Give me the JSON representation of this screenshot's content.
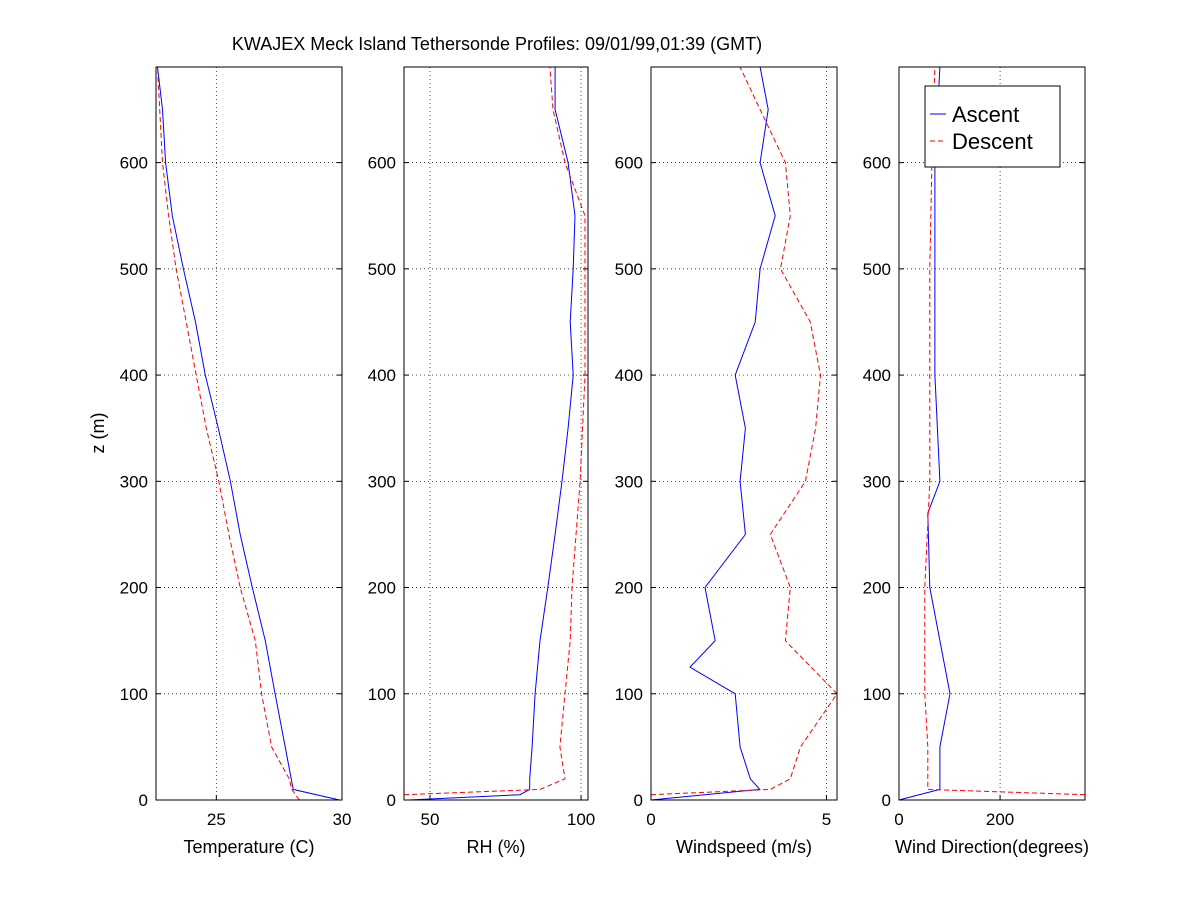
{
  "chart_data": {
    "type": "line",
    "title": "KWAJEX Meck Island Tethersonde Profiles: 09/01/99,01:39 (GMT)",
    "ylabel": "z (m)",
    "ylim": [
      0,
      690
    ],
    "yticks": [
      0,
      100,
      200,
      300,
      400,
      500,
      600
    ],
    "legend": {
      "placement": "top-right of fourth panel",
      "entries": [
        {
          "name": "Ascent",
          "color": "#0000ff",
          "style": "solid"
        },
        {
          "name": "Descent",
          "color": "#ff0000",
          "style": "dashed"
        }
      ]
    },
    "grid": true,
    "panels": [
      {
        "xlabel": "Temperature (C)",
        "xlim": [
          22.6,
          30
        ],
        "xticks": [
          25,
          30
        ],
        "series": [
          {
            "name": "Ascent",
            "x": [
              29.9,
              28.06,
              27.74,
              27.34,
              26.95,
              26.43,
              25.95,
              25.56,
              25.08,
              24.56,
              24.17,
              23.69,
              23.25,
              22.98,
              22.86,
              22.66
            ],
            "z": [
              0,
              10,
              50,
              100,
              150,
              200,
              250,
              300,
              350,
              400,
              450,
              500,
              550,
              600,
              650,
              690
            ]
          },
          {
            "name": "Descent",
            "x": [
              28.3,
              28.0,
              27.9,
              27.2,
              26.8,
              26.55,
              25.95,
              25.5,
              25.1,
              24.6,
              24.2,
              23.8,
              23.4,
              23.1,
              22.86,
              22.66
            ],
            "z": [
              0,
              10,
              20,
              50,
              100,
              150,
              200,
              250,
              300,
              350,
              400,
              450,
              500,
              550,
              600,
              690
            ]
          }
        ]
      },
      {
        "xlabel": "RH (%)",
        "xlim": [
          41.4,
          102.3
        ],
        "xticks": [
          50,
          100
        ],
        "series": [
          {
            "name": "Ascent",
            "x": [
              43,
              79.8,
              83,
              83,
              83.8,
              84.8,
              86.4,
              89,
              91.4,
              93.7,
              95.7,
              97.4,
              96.4,
              97.4,
              98,
              95.7,
              91.4,
              91.4
            ],
            "z": [
              0,
              5,
              10,
              20,
              50,
              100,
              150,
              200,
              250,
              300,
              350,
              400,
              450,
              500,
              550,
              600,
              650,
              690
            ]
          },
          {
            "name": "Descent",
            "x": [
              41.4,
              86.4,
              94.7,
              93,
              94.7,
              96.4,
              97,
              99.7,
              101.3,
              101.3,
              101.3,
              94.7,
              90.7,
              89.7
            ],
            "z": [
              5,
              10,
              20,
              50,
              100,
              150,
              200,
              300,
              400,
              500,
              550,
              600,
              650,
              690
            ]
          }
        ]
      },
      {
        "xlabel": "Windspeed (m/s)",
        "xlim": [
          0,
          5.3
        ],
        "xticks": [
          0,
          5
        ],
        "series": [
          {
            "name": "Ascent",
            "x": [
              0,
              3.1,
              2.83,
              2.54,
              2.4,
              1.11,
              1.83,
              1.54,
              2.69,
              2.54,
              2.69,
              2.4,
              2.97,
              3.11,
              3.54,
              3.11,
              3.34,
              3.11
            ],
            "z": [
              0,
              10,
              20,
              50,
              100,
              125,
              150,
              200,
              250,
              300,
              350,
              400,
              450,
              500,
              550,
              600,
              650,
              690
            ]
          },
          {
            "name": "Descent",
            "x": [
              0,
              3.4,
              3.97,
              4.26,
              5.3,
              3.83,
              3.97,
              3.4,
              4.4,
              4.69,
              4.83,
              4.54,
              3.69,
              3.97,
              3.83,
              3.11,
              2.54
            ],
            "z": [
              5,
              10,
              20,
              50,
              100,
              150,
              200,
              250,
              300,
              350,
              400,
              450,
              500,
              550,
              600,
              650,
              690
            ]
          }
        ]
      },
      {
        "xlabel": "Wind Direction(degrees)",
        "xlim": [
          0,
          368
        ],
        "xticks": [
          0,
          200
        ],
        "series": [
          {
            "name": "Ascent",
            "x": [
              0,
              81,
              81,
              101,
              81,
              61,
              57,
              81,
              71,
              71,
              71,
              81
            ],
            "z": [
              0,
              10,
              50,
              100,
              150,
              200,
              270,
              300,
              400,
              500,
              600,
              690
            ]
          },
          {
            "name": "Descent",
            "x": [
              368,
              57,
              57,
              51,
              51,
              61,
              61,
              61,
              65,
              71
            ],
            "z": [
              5,
              10,
              50,
              100,
              200,
              300,
              400,
              500,
              600,
              690
            ]
          }
        ]
      }
    ]
  }
}
